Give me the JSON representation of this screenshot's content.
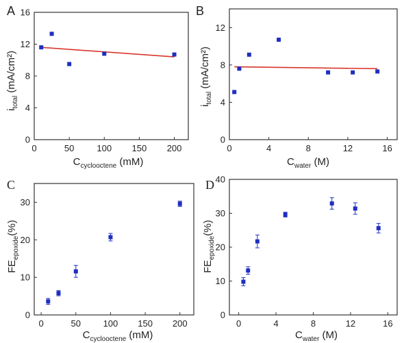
{
  "figure": {
    "panels": [
      {
        "letter": "A",
        "xlabel_main": "C",
        "xlabel_sub": "cyclooctene",
        "xlabel_unit": " (mM)",
        "ylabel_main": "i",
        "ylabel_sub": "total",
        "ylabel_unit": " (mA/cm²)"
      },
      {
        "letter": "B",
        "xlabel_main": "C",
        "xlabel_sub": "water",
        "xlabel_unit": " (M)",
        "ylabel_main": "i",
        "ylabel_sub": "total",
        "ylabel_unit": " (mA/cm²)"
      },
      {
        "letter": "C",
        "xlabel_main": "C",
        "xlabel_sub": "cyclooctene",
        "xlabel_unit": " (mM)",
        "ylabel_main": "FE",
        "ylabel_sub": "epoxide",
        "ylabel_unit": "(%)"
      },
      {
        "letter": "D",
        "xlabel_main": "C",
        "xlabel_sub": "water",
        "xlabel_unit": " (M)",
        "ylabel_main": "FE",
        "ylabel_sub": "epoxide",
        "ylabel_unit": "(%)"
      }
    ]
  },
  "chart_data": [
    {
      "type": "scatter",
      "xlim": [
        0,
        220
      ],
      "ylim": [
        0,
        16
      ],
      "xticks": [
        0,
        50,
        100,
        150,
        200
      ],
      "yticks": [
        0,
        4,
        8,
        12,
        16
      ],
      "x": [
        10,
        25,
        50,
        100,
        200
      ],
      "y": [
        11.6,
        13.3,
        9.5,
        10.8,
        10.7
      ],
      "fit_line": {
        "x": [
          10,
          200
        ],
        "y": [
          11.6,
          10.4
        ]
      },
      "marker_color": "#1f2fbf",
      "line_color": "#d9362b",
      "grid": false
    },
    {
      "type": "scatter",
      "xlim": [
        0,
        17
      ],
      "ylim": [
        0,
        14
      ],
      "xticks": [
        0,
        4,
        8,
        12,
        16
      ],
      "yticks": [
        0,
        4,
        8,
        12
      ],
      "x": [
        0.5,
        1,
        2,
        5,
        10,
        12.5,
        15
      ],
      "y": [
        5.1,
        7.6,
        9.1,
        10.7,
        7.2,
        7.2,
        7.3
      ],
      "fit_line": {
        "x": [
          0.5,
          15
        ],
        "y": [
          7.8,
          7.6
        ]
      },
      "marker_color": "#1f2fbf",
      "line_color": "#d9362b",
      "grid": false
    },
    {
      "type": "scatter",
      "xlim": [
        -10,
        220
      ],
      "ylim": [
        0,
        35
      ],
      "xticks": [
        0,
        50,
        100,
        150,
        200
      ],
      "yticks": [
        0,
        10,
        20,
        30
      ],
      "x": [
        10,
        25,
        50,
        100,
        200
      ],
      "y": [
        3.6,
        5.8,
        11.6,
        20.7,
        29.6
      ],
      "yerr": [
        0.8,
        0.7,
        1.6,
        1.0,
        0.7
      ],
      "marker_color": "#1f2fbf",
      "grid": false
    },
    {
      "type": "scatter",
      "xlim": [
        -1,
        17
      ],
      "ylim": [
        0,
        40
      ],
      "xticks": [
        0,
        4,
        8,
        12,
        16
      ],
      "yticks": [
        0,
        10,
        20,
        30,
        40
      ],
      "x": [
        0.5,
        1,
        2,
        5,
        10,
        12.5,
        15
      ],
      "y": [
        9.8,
        13.1,
        21.7,
        29.6,
        32.9,
        31.4,
        25.6
      ],
      "yerr": [
        1.2,
        1.1,
        1.9,
        0.7,
        1.7,
        1.7,
        1.4
      ],
      "marker_color": "#1f2fbf",
      "grid": false
    }
  ]
}
